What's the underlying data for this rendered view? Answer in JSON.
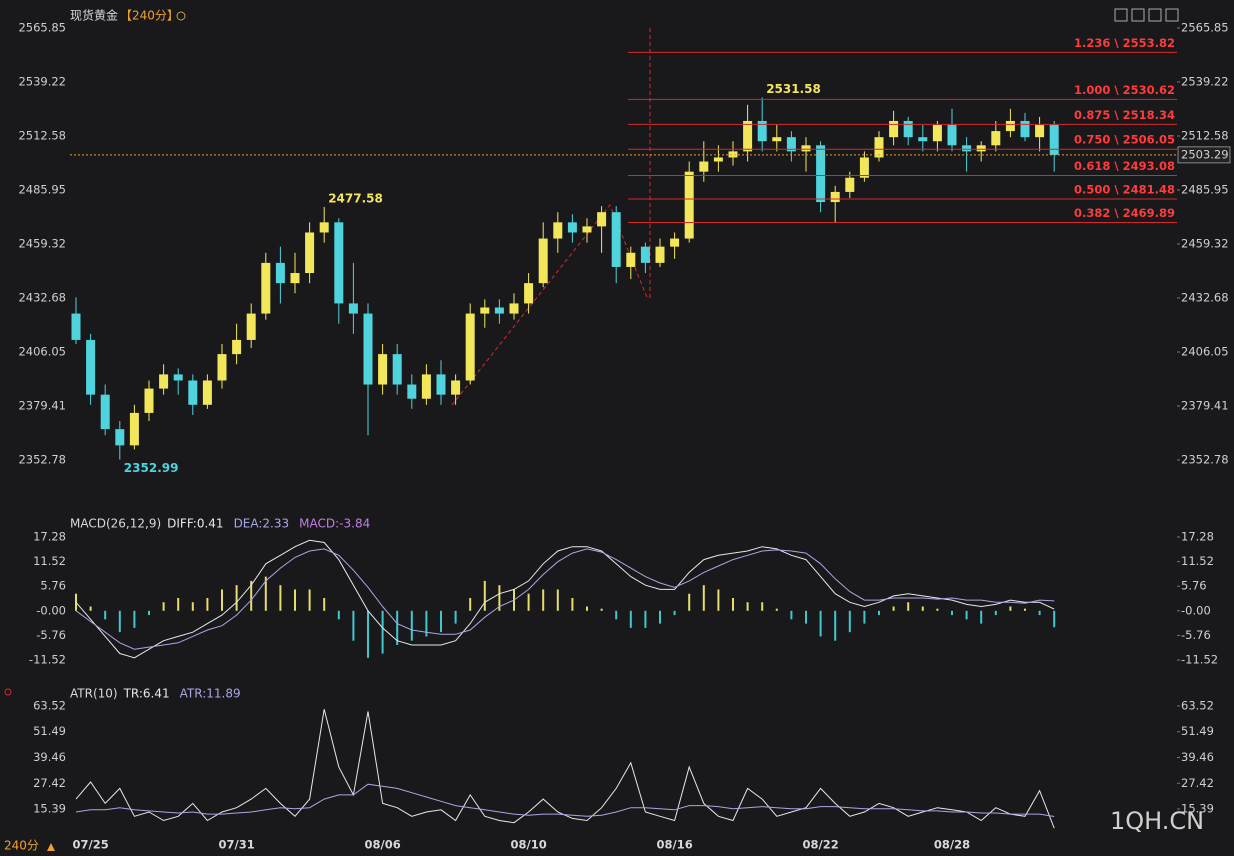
{
  "chart_data": [
    {
      "type": "candlestick",
      "title": "现货黄金",
      "subtitle": "【240分】",
      "up_color": "#f2e65a",
      "down_color": "#4fd3dc",
      "categories": [
        null,
        "07/25",
        null,
        null,
        null,
        null,
        null,
        null,
        null,
        null,
        null,
        "07/31",
        null,
        null,
        null,
        null,
        null,
        null,
        null,
        null,
        null,
        "08/06",
        null,
        null,
        null,
        null,
        null,
        null,
        null,
        null,
        null,
        "08/10",
        null,
        null,
        null,
        null,
        null,
        null,
        null,
        null,
        null,
        "08/16",
        null,
        null,
        null,
        null,
        null,
        null,
        null,
        null,
        null,
        "08/22",
        null,
        null,
        null,
        null,
        null,
        null,
        null,
        null,
        "08/28",
        null,
        null,
        null,
        null,
        null,
        null,
        null
      ],
      "candles": [
        [
          2425,
          2433,
          2410,
          2412
        ],
        [
          2412,
          2415,
          2380,
          2385
        ],
        [
          2385,
          2390,
          2365,
          2368
        ],
        [
          2368,
          2372,
          2352.99,
          2360
        ],
        [
          2360,
          2380,
          2358,
          2376
        ],
        [
          2376,
          2392,
          2372,
          2388
        ],
        [
          2388,
          2400,
          2385,
          2395
        ],
        [
          2395,
          2398,
          2385,
          2392
        ],
        [
          2392,
          2395,
          2375,
          2380
        ],
        [
          2380,
          2395,
          2378,
          2392
        ],
        [
          2392,
          2410,
          2388,
          2405
        ],
        [
          2405,
          2420,
          2400,
          2412
        ],
        [
          2412,
          2430,
          2408,
          2425
        ],
        [
          2425,
          2455,
          2422,
          2450
        ],
        [
          2450,
          2458,
          2430,
          2440
        ],
        [
          2440,
          2455,
          2435,
          2445
        ],
        [
          2445,
          2470,
          2440,
          2465
        ],
        [
          2465,
          2477.58,
          2460,
          2470
        ],
        [
          2470,
          2472,
          2420,
          2430
        ],
        [
          2430,
          2450,
          2415,
          2425
        ],
        [
          2425,
          2430,
          2365,
          2390
        ],
        [
          2390,
          2410,
          2385,
          2405
        ],
        [
          2405,
          2410,
          2385,
          2390
        ],
        [
          2390,
          2395,
          2378,
          2383
        ],
        [
          2383,
          2400,
          2380,
          2395
        ],
        [
          2395,
          2402,
          2380,
          2385
        ],
        [
          2385,
          2395,
          2380,
          2392
        ],
        [
          2392,
          2430,
          2390,
          2425
        ],
        [
          2425,
          2432,
          2418,
          2428
        ],
        [
          2428,
          2432,
          2420,
          2425
        ],
        [
          2425,
          2435,
          2422,
          2430
        ],
        [
          2430,
          2445,
          2425,
          2440
        ],
        [
          2440,
          2470,
          2438,
          2462
        ],
        [
          2462,
          2475,
          2455,
          2470
        ],
        [
          2470,
          2474,
          2460,
          2465
        ],
        [
          2465,
          2472,
          2460,
          2468
        ],
        [
          2468,
          2478,
          2455,
          2475
        ],
        [
          2475,
          2478,
          2440,
          2448
        ],
        [
          2448,
          2458,
          2442,
          2455
        ],
        [
          2458,
          2460,
          2445,
          2450
        ],
        [
          2450,
          2462,
          2448,
          2458
        ],
        [
          2458,
          2465,
          2452,
          2462
        ],
        [
          2462,
          2500,
          2460,
          2495
        ],
        [
          2495,
          2510,
          2490,
          2500
        ],
        [
          2500,
          2508,
          2495,
          2502
        ],
        [
          2502,
          2510,
          2498,
          2505
        ],
        [
          2505,
          2528,
          2500,
          2520
        ],
        [
          2520,
          2531.58,
          2505,
          2510
        ],
        [
          2510,
          2518,
          2505,
          2512
        ],
        [
          2512,
          2515,
          2500,
          2505
        ],
        [
          2505,
          2512,
          2495,
          2508
        ],
        [
          2508,
          2510,
          2475,
          2480
        ],
        [
          2480,
          2488,
          2470,
          2485
        ],
        [
          2485,
          2495,
          2482,
          2492
        ],
        [
          2492,
          2505,
          2490,
          2502
        ],
        [
          2502,
          2515,
          2500,
          2512
        ],
        [
          2512,
          2525,
          2508,
          2520
        ],
        [
          2520,
          2522,
          2508,
          2512
        ],
        [
          2512,
          2518,
          2505,
          2510
        ],
        [
          2510,
          2520,
          2505,
          2518
        ],
        [
          2518,
          2526,
          2505,
          2508
        ],
        [
          2508,
          2512,
          2495,
          2505
        ],
        [
          2505,
          2510,
          2500,
          2508
        ],
        [
          2508,
          2520,
          2505,
          2515
        ],
        [
          2515,
          2526,
          2512,
          2520
        ],
        [
          2520,
          2524,
          2510,
          2512
        ],
        [
          2512,
          2522,
          2505,
          2518
        ],
        [
          2518,
          2520,
          2495,
          2503.29
        ]
      ],
      "ylim": [
        2330.58,
        2569.8
      ],
      "yticks": [
        2352.78,
        2379.41,
        2406.05,
        2432.68,
        2459.32,
        2485.95,
        2512.58,
        2539.22,
        2565.85
      ],
      "fib_color": "#d42a2a",
      "fib_levels": [
        {
          "value": 2553.82,
          "label": "1.236 \\ 2553.82"
        },
        {
          "value": 2530.62,
          "label": "1.000 \\ 2530.62"
        },
        {
          "value": 2518.34,
          "label": "0.875 \\ 2518.34"
        },
        {
          "value": 2506.05,
          "label": "0.750 \\ 2506.05"
        },
        {
          "value": 2493.08,
          "label": "0.618 \\ 2493.08"
        },
        {
          "value": 2481.48,
          "label": "0.500 \\ 2481.48"
        },
        {
          "value": 2469.89,
          "label": "0.382 \\ 2469.89"
        }
      ],
      "grid": false
    },
    {
      "type": "macd",
      "title": "MACD(26,12,9)",
      "ylim": [
        -14.33,
        18.92
      ],
      "yticks": [
        17.28,
        11.52,
        5.76,
        {
          "value": 0,
          "label": "-0.00"
        },
        -5.76,
        -11.52
      ],
      "series": [
        {
          "name": "DIFF:0.41",
          "kind": "line",
          "color": "#e8e8e8",
          "values": [
            2,
            -2,
            -6,
            -10,
            -11,
            -9,
            -7,
            -6,
            -5,
            -3,
            -1,
            2,
            6,
            11,
            13,
            15,
            16.5,
            16,
            12,
            6,
            0,
            -4,
            -7,
            -8,
            -8,
            -8,
            -7,
            -3,
            2,
            4,
            5,
            7,
            11,
            14,
            15,
            15,
            14,
            11,
            8,
            6,
            5,
            5,
            9,
            12,
            13,
            13.5,
            14,
            15,
            14.5,
            13,
            12,
            8,
            4,
            2,
            1,
            2,
            3.5,
            4,
            3.5,
            3,
            2.5,
            1.5,
            1,
            1.5,
            2.5,
            2,
            2,
            0.41
          ]
        },
        {
          "name": "DEA:2.33",
          "kind": "line",
          "color": "#a9a6e6",
          "values": [
            0,
            -2.5,
            -5,
            -7.5,
            -9,
            -8.5,
            -8,
            -7.5,
            -6,
            -4.5,
            -3.5,
            -1,
            2.5,
            7,
            10,
            12.5,
            14,
            14.5,
            13,
            9.5,
            5.5,
            1,
            -3,
            -4.5,
            -5,
            -5.5,
            -5.5,
            -4.5,
            -1.5,
            1,
            2.5,
            5,
            8.5,
            11.5,
            13.5,
            14.5,
            13.75,
            12,
            10,
            8,
            6.5,
            5.5,
            7,
            9,
            10.5,
            12,
            13,
            14,
            14.25,
            14,
            13.5,
            11,
            7.5,
            4.5,
            2.5,
            2.5,
            3,
            3,
            3,
            2.75,
            3,
            2.5,
            2.5,
            2,
            2,
            1.75,
            2.5,
            2.33
          ]
        },
        {
          "name": "MACD:-3.84",
          "kind": "histogram",
          "color": "#e8dc6a",
          "negative_color": "#3fc9cf",
          "legend_color": "#c07fe0",
          "values": [
            4,
            1,
            -2,
            -5,
            -4,
            -1,
            2,
            3,
            2,
            3,
            5,
            6,
            7,
            8,
            6,
            5,
            5,
            3,
            -2,
            -7,
            -11,
            -10,
            -8,
            -7,
            -6,
            -5,
            -3,
            3,
            7,
            6,
            5,
            4,
            5,
            5,
            3,
            1,
            0.5,
            -2,
            -4,
            -4,
            -3,
            -1,
            4,
            6,
            5,
            3,
            2,
            2,
            0.5,
            -2,
            -3,
            -6,
            -7,
            -5,
            -3,
            -1,
            1,
            2,
            1,
            0.5,
            -1,
            -2,
            -3,
            -1,
            1,
            0.5,
            -1,
            -3.84
          ]
        }
      ]
    },
    {
      "type": "atr",
      "title": "ATR(10)",
      "ylim": [
        5.58,
        66.32
      ],
      "yticks": [
        63.52,
        51.49,
        39.46,
        27.42,
        15.39
      ],
      "series": [
        {
          "name": "TR:6.41",
          "kind": "line",
          "color": "#e8e8e8",
          "values": [
            20,
            28,
            18,
            25,
            12,
            14,
            10,
            12,
            18,
            10,
            14,
            16,
            20,
            25,
            18,
            12,
            20,
            62,
            35,
            22,
            61,
            18,
            16,
            12,
            14,
            15,
            10,
            22,
            12,
            10,
            9,
            14,
            20,
            14,
            11,
            10,
            16,
            25,
            37,
            14,
            12,
            10,
            35,
            18,
            12,
            10,
            25,
            20,
            12,
            14,
            16,
            25,
            18,
            12,
            14,
            18,
            16,
            12,
            14,
            16,
            15,
            14,
            10,
            16,
            13,
            12,
            24,
            6.41
          ]
        },
        {
          "name": "ATR:11.89",
          "kind": "line",
          "color": "#a9a6e6",
          "values": [
            14,
            15,
            15,
            16,
            15,
            14.5,
            14,
            13.5,
            14,
            13,
            13,
            13.5,
            14,
            15,
            16,
            15.5,
            16,
            20,
            22,
            22,
            27,
            26,
            25,
            23,
            21,
            19,
            17,
            16,
            15,
            14,
            13,
            12.5,
            13,
            13,
            12.5,
            12,
            12.5,
            14,
            16,
            16,
            15.5,
            15,
            17,
            17,
            16.5,
            15.5,
            16,
            16.5,
            16,
            15.5,
            15.5,
            16.5,
            16.5,
            16,
            15.5,
            15.5,
            15.5,
            15,
            14.5,
            14.5,
            14,
            14,
            13.5,
            13.5,
            13,
            13,
            13,
            11.89
          ]
        }
      ]
    }
  ],
  "footer": {
    "period": "240分",
    "watermark": "1QH.CN"
  }
}
